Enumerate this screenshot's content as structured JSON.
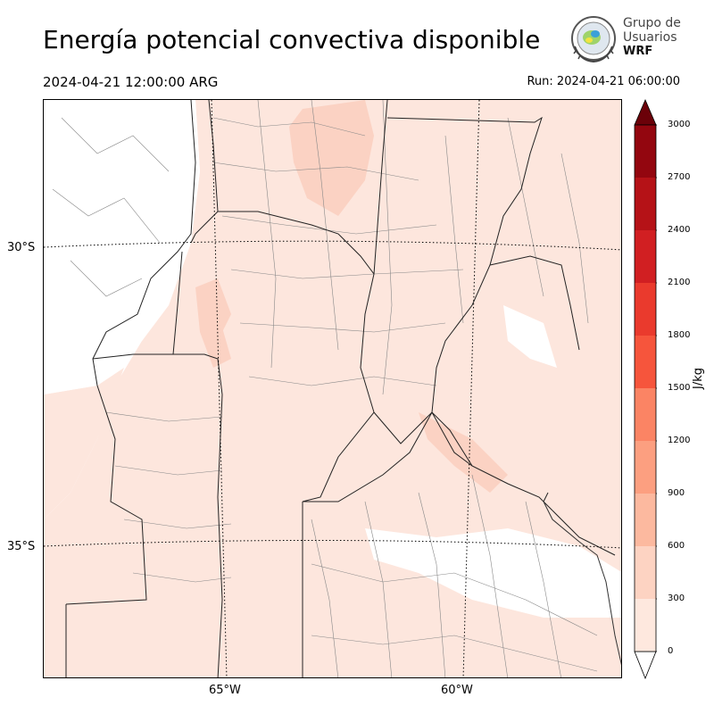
{
  "header": {
    "title": "Energía potencial convectiva disponible",
    "valid_time": "2024-04-21 12:00:00 ARG",
    "run_time": "Run: 2024-04-21 06:00:00"
  },
  "logo": {
    "line1": "Grupo de",
    "line2": "Usuarios",
    "line3": "WRF"
  },
  "map": {
    "lat_labels": [
      "30°S",
      "35°S"
    ],
    "lon_labels": [
      "65°W",
      "60°W"
    ],
    "fill_colors": {
      "low": "#fde6dd",
      "mid": "#fbd2c3",
      "background": "#ffffff",
      "boundary": "#000000",
      "department": "#777777"
    }
  },
  "colorbar": {
    "unit": "J/kg",
    "levels": [
      "0",
      "300",
      "600",
      "900",
      "1200",
      "1500",
      "1800",
      "2100",
      "2400",
      "2700",
      "3000"
    ],
    "colors": [
      "#fee8de",
      "#fdd3c2",
      "#fcb99f",
      "#fc9f80",
      "#fb8464",
      "#f6553c",
      "#ea3a2d",
      "#d11f22",
      "#b51217",
      "#93060f",
      "#6b0109"
    ]
  }
}
